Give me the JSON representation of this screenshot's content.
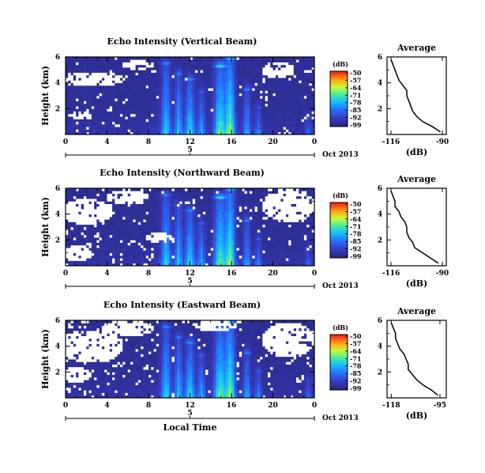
{
  "chart_data": [
    {
      "type": "heatmap",
      "title": "Echo Intensity (Vertical Beam)",
      "ylabel": "Height (km)",
      "xlim": [
        0,
        24
      ],
      "ylim": [
        0,
        6
      ],
      "xticks": [
        "0",
        "4",
        "8",
        "12",
        "16",
        "20",
        "0"
      ],
      "yticks": [
        "2",
        "4",
        "6"
      ],
      "date_label": "Oct 2013",
      "day_label": "5",
      "colorbar": {
        "unit": "(dB)",
        "ticks": [
          "-50",
          "-57",
          "-64",
          "-71",
          "-78",
          "-85",
          "-92",
          "-99"
        ]
      },
      "average": {
        "title": "Average",
        "xlabel": "(dB)",
        "xticks": [
          "-116",
          "-90"
        ],
        "xlim": [
          -118,
          -88
        ],
        "heights": [
          0.2,
          0.6,
          1.0,
          1.4,
          1.8,
          2.2,
          2.6,
          3.0,
          3.4,
          3.8,
          4.2,
          4.6,
          5.0,
          5.4,
          5.8
        ],
        "values": [
          -91,
          -95,
          -100,
          -103,
          -105,
          -106,
          -107,
          -108,
          -108,
          -110,
          -112,
          -113,
          -114,
          -115,
          -116
        ]
      }
    },
    {
      "type": "heatmap",
      "title": "Echo Intensity (Northward Beam)",
      "ylabel": "Height (km)",
      "xlim": [
        0,
        24
      ],
      "ylim": [
        0,
        6
      ],
      "xticks": [
        "0",
        "4",
        "8",
        "12",
        "16",
        "20",
        "0"
      ],
      "yticks": [
        "2",
        "4",
        "6"
      ],
      "date_label": "Oct 2013",
      "day_label": "5",
      "colorbar": {
        "unit": "(dB)",
        "ticks": [
          "-50",
          "-57",
          "-64",
          "-71",
          "-78",
          "-85",
          "-92",
          "-99"
        ]
      },
      "average": {
        "title": "Average",
        "xlabel": "(dB)",
        "xticks": [
          "-116",
          "-90"
        ],
        "xlim": [
          -118,
          -88
        ],
        "heights": [
          0.2,
          0.6,
          1.0,
          1.4,
          1.8,
          2.2,
          2.6,
          3.0,
          3.4,
          3.8,
          4.2,
          4.6,
          5.0,
          5.4,
          5.8
        ],
        "values": [
          -92,
          -96,
          -100,
          -104,
          -105,
          -107,
          -108,
          -108,
          -109,
          -111,
          -112,
          -114,
          -114,
          -115,
          -116
        ]
      }
    },
    {
      "type": "heatmap",
      "title": "Echo Intensity (Eastward Beam)",
      "ylabel": "Height (km)",
      "xlabel": "Local Time",
      "xlim": [
        0,
        24
      ],
      "ylim": [
        0,
        6
      ],
      "xticks": [
        "0",
        "4",
        "8",
        "12",
        "16",
        "20",
        "0"
      ],
      "yticks": [
        "2",
        "4",
        "6"
      ],
      "date_label": "Oct 2013",
      "day_label": "5",
      "colorbar": {
        "unit": "(dB)",
        "ticks": [
          "-50",
          "-57",
          "-64",
          "-71",
          "-78",
          "-85",
          "-92",
          "-99"
        ]
      },
      "average": {
        "title": "Average",
        "xlabel": "(dB)",
        "xticks": [
          "-118",
          "-95"
        ],
        "xlim": [
          -120,
          -92
        ],
        "heights": [
          0.2,
          0.6,
          1.0,
          1.4,
          1.8,
          2.2,
          2.6,
          3.0,
          3.4,
          3.8,
          4.2,
          4.6,
          5.0,
          5.4,
          5.8
        ],
        "values": [
          -96,
          -99,
          -103,
          -106,
          -108,
          -110,
          -110,
          -111,
          -112,
          -114,
          -115,
          -116,
          -116,
          -117,
          -118
        ]
      }
    }
  ]
}
